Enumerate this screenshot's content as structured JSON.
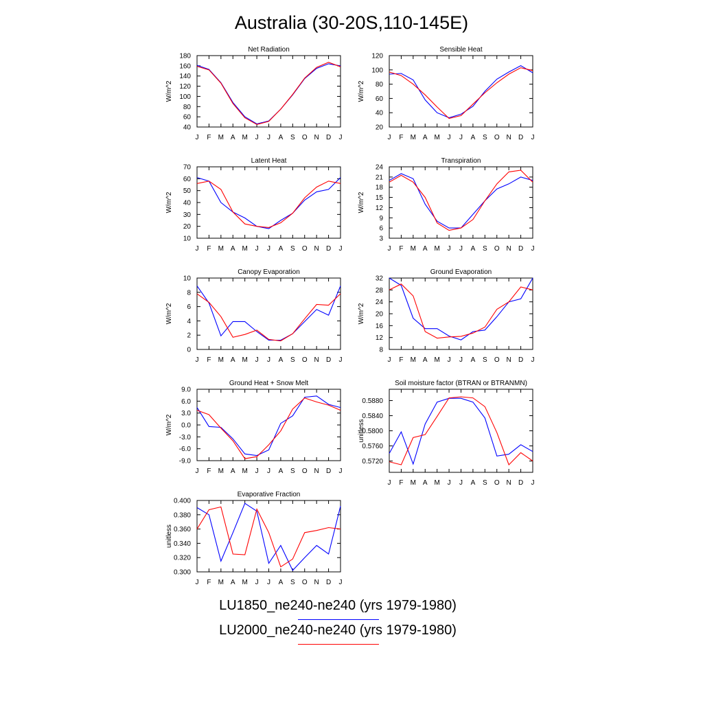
{
  "title": "Australia (30-20S,110-145E)",
  "months": [
    "J",
    "F",
    "M",
    "A",
    "M",
    "J",
    "J",
    "A",
    "S",
    "O",
    "N",
    "D",
    "J"
  ],
  "legend": [
    {
      "label": "LU1850_ne240-ne240 (yrs 1979-1980)",
      "color": "#0000ff"
    },
    {
      "label": "LU2000_ne240-ne240 (yrs 1979-1980)",
      "color": "#ff0000"
    }
  ],
  "chart_data": [
    {
      "type": "line",
      "title": "Net Radiation",
      "ylabel": "W/m^2",
      "ylim": [
        40,
        180
      ],
      "yticks": [
        "40",
        "60",
        "80",
        "100",
        "120",
        "140",
        "160",
        "180"
      ],
      "yticks_val": [
        40,
        60,
        80,
        100,
        120,
        140,
        160,
        180
      ],
      "series": [
        {
          "color": "#0000ff",
          "values": [
            161,
            153,
            127,
            88,
            60,
            46,
            52,
            75,
            103,
            135,
            155,
            164,
            160
          ]
        },
        {
          "color": "#ff0000",
          "values": [
            159,
            152,
            126,
            86,
            58,
            45,
            51,
            75,
            104,
            136,
            157,
            167,
            158
          ]
        }
      ]
    },
    {
      "type": "line",
      "title": "Sensible Heat",
      "ylabel": "W/m^2",
      "ylim": [
        20,
        120
      ],
      "yticks": [
        "20",
        "40",
        "60",
        "80",
        "100",
        "120"
      ],
      "yticks_val": [
        20,
        40,
        60,
        80,
        100,
        120
      ],
      "series": [
        {
          "color": "#0000ff",
          "values": [
            94,
            95,
            86,
            58,
            40,
            33,
            38,
            49,
            70,
            87,
            97,
            106,
            96
          ]
        },
        {
          "color": "#ff0000",
          "values": [
            97,
            92,
            80,
            65,
            48,
            32,
            36,
            52,
            68,
            82,
            94,
            103,
            99
          ]
        }
      ]
    },
    {
      "type": "line",
      "title": "Latent Heat",
      "ylabel": "W/m^2",
      "ylim": [
        10,
        70
      ],
      "yticks": [
        "10",
        "20",
        "30",
        "40",
        "50",
        "60",
        "70"
      ],
      "yticks_val": [
        10,
        20,
        30,
        40,
        50,
        60,
        70
      ],
      "series": [
        {
          "color": "#0000ff",
          "values": [
            61,
            58,
            40,
            32,
            27,
            20,
            18,
            25,
            31,
            42,
            49,
            51,
            61
          ]
        },
        {
          "color": "#ff0000",
          "values": [
            56,
            58,
            51,
            32,
            22,
            20,
            19,
            23,
            31,
            44,
            53,
            58,
            56
          ]
        }
      ]
    },
    {
      "type": "line",
      "title": "Transpiration",
      "ylabel": "W/m^2",
      "ylim": [
        3,
        24
      ],
      "yticks": [
        "3",
        "6",
        "9",
        "12",
        "15",
        "18",
        "21",
        "24"
      ],
      "yticks_val": [
        3,
        6,
        9,
        12,
        15,
        18,
        21,
        24
      ],
      "series": [
        {
          "color": "#0000ff",
          "values": [
            20,
            22,
            20.5,
            13,
            8,
            6,
            6,
            10,
            14,
            17.5,
            19,
            21,
            20
          ]
        },
        {
          "color": "#ff0000",
          "values": [
            19.5,
            21.5,
            19.5,
            15,
            7.5,
            5.3,
            6,
            8.5,
            14,
            19,
            22.5,
            23,
            19.5
          ]
        }
      ]
    },
    {
      "type": "line",
      "title": "Canopy Evaporation",
      "ylabel": "W/m^2",
      "ylim": [
        0,
        10
      ],
      "yticks": [
        "0",
        "2",
        "4",
        "6",
        "8",
        "10"
      ],
      "yticks_val": [
        0,
        2,
        4,
        6,
        8,
        10
      ],
      "series": [
        {
          "color": "#0000ff",
          "values": [
            8.9,
            6.5,
            1.9,
            3.9,
            3.9,
            2.5,
            1.3,
            1.3,
            2.2,
            3.9,
            5.6,
            4.8,
            8.9
          ]
        },
        {
          "color": "#ff0000",
          "values": [
            7.8,
            6.6,
            4.6,
            1.7,
            2.1,
            2.7,
            1.4,
            1.2,
            2.2,
            4.3,
            6.3,
            6.2,
            7.8
          ]
        }
      ]
    },
    {
      "type": "line",
      "title": "Ground Evaporation",
      "ylabel": "W/m^2",
      "ylim": [
        8,
        32
      ],
      "yticks": [
        "8",
        "12",
        "16",
        "20",
        "24",
        "28",
        "32"
      ],
      "yticks_val": [
        8,
        12,
        16,
        20,
        24,
        28,
        32
      ],
      "series": [
        {
          "color": "#0000ff",
          "values": [
            32,
            29.5,
            18.5,
            15,
            15,
            12.5,
            11.2,
            14,
            14.5,
            19,
            24,
            25,
            32
          ]
        },
        {
          "color": "#ff0000",
          "values": [
            28,
            30,
            26,
            14,
            11.8,
            12.2,
            12.4,
            13.5,
            15.5,
            21.5,
            24,
            29,
            28
          ]
        }
      ]
    },
    {
      "type": "line",
      "title": "Ground Heat + Snow Melt",
      "ylabel": "W/m^2",
      "ylim": [
        -9,
        9
      ],
      "yticks": [
        "-9.0",
        "-6.0",
        "-3.0",
        "0.0",
        "3.0",
        "6.0",
        "9.0"
      ],
      "yticks_val": [
        -9,
        -6,
        -3,
        0,
        3,
        6,
        9
      ],
      "series": [
        {
          "color": "#0000ff",
          "values": [
            4.4,
            -0.4,
            -0.6,
            -3.5,
            -7.3,
            -7.7,
            -6.3,
            0.4,
            2.3,
            7.0,
            7.3,
            5.2,
            4.4
          ]
        },
        {
          "color": "#ff0000",
          "values": [
            3.7,
            2.6,
            -0.8,
            -4,
            -8.5,
            -8,
            -5,
            -1.5,
            4,
            6.8,
            5.8,
            5,
            3.7
          ]
        }
      ]
    },
    {
      "type": "line",
      "title": "Soil moisture factor (BTRAN or BTRANMN)",
      "ylabel": "unitless",
      "ylim": [
        0.569,
        0.591
      ],
      "yticks": [
        "0.5720",
        "0.5760",
        "0.5800",
        "0.5840",
        "0.5880"
      ],
      "yticks_val": [
        0.572,
        0.576,
        0.58,
        0.584,
        0.588
      ],
      "series": [
        {
          "color": "#0000ff",
          "values": [
            0.574,
            0.5797,
            0.5712,
            0.5818,
            0.5876,
            0.5886,
            0.5886,
            0.5876,
            0.5834,
            0.5733,
            0.5738,
            0.5763,
            0.5745
          ]
        },
        {
          "color": "#ff0000",
          "values": [
            0.5718,
            0.571,
            0.5782,
            0.579,
            0.5838,
            0.5887,
            0.589,
            0.5887,
            0.5864,
            0.5795,
            0.571,
            0.5742,
            0.572
          ]
        }
      ]
    },
    {
      "type": "line",
      "title": "Evaporative Fraction",
      "ylabel": "unitless",
      "ylim": [
        0.3,
        0.4
      ],
      "yticks": [
        "0.300",
        "0.320",
        "0.340",
        "0.360",
        "0.380",
        "0.400"
      ],
      "yticks_val": [
        0.3,
        0.32,
        0.34,
        0.36,
        0.38,
        0.4
      ],
      "series": [
        {
          "color": "#0000ff",
          "values": [
            0.39,
            0.38,
            0.315,
            0.355,
            0.396,
            0.385,
            0.312,
            0.337,
            0.302,
            0.32,
            0.337,
            0.325,
            0.392
          ]
        },
        {
          "color": "#ff0000",
          "values": [
            0.36,
            0.387,
            0.391,
            0.325,
            0.324,
            0.388,
            0.355,
            0.307,
            0.318,
            0.355,
            0.358,
            0.362,
            0.36
          ]
        }
      ]
    }
  ]
}
